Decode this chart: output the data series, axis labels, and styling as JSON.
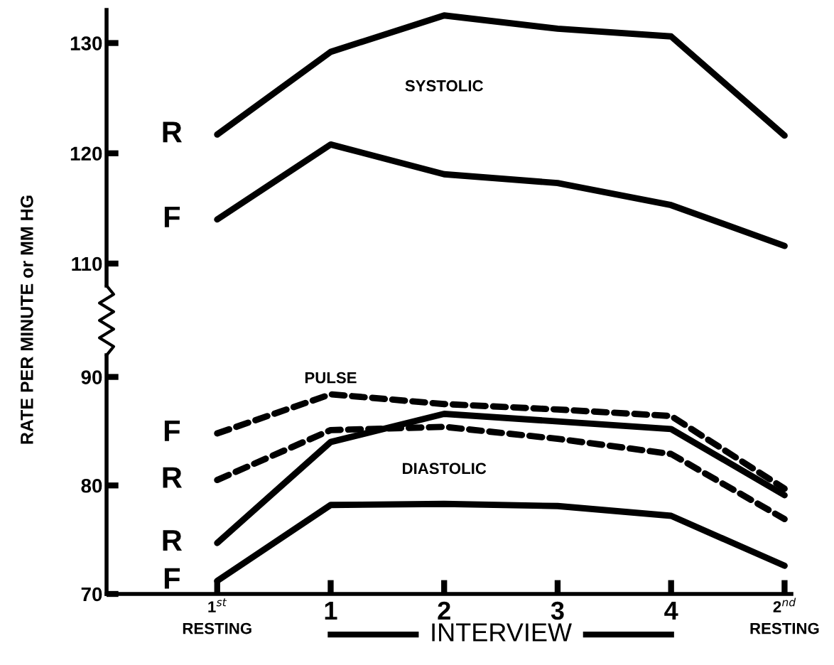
{
  "chart_data": [
    {
      "type": "line",
      "categories": [
        null,
        null,
        null,
        null,
        null,
        null
      ],
      "ylim": [
        108,
        133
      ],
      "yticks": [
        110,
        120,
        130
      ],
      "tick_labels": "y",
      "grid": false,
      "legend": false,
      "series": [
        {
          "name": "R",
          "color": "#000000",
          "line_style": "solid",
          "values": [
            121.7,
            129.2,
            132.5,
            131.3,
            130.6,
            121.6
          ]
        },
        {
          "name": "F",
          "color": "#000000",
          "line_style": "solid",
          "values": [
            114.0,
            120.8,
            118.1,
            117.3,
            115.3,
            111.6
          ]
        }
      ],
      "annotations": [
        "SYSTOLIC"
      ]
    },
    {
      "type": "line",
      "categories": [
        "1$^{st}$\nRESTING",
        "1",
        "2",
        "3",
        "4",
        "2$^{nd}$\nRESTING"
      ],
      "ylim": [
        70,
        92
      ],
      "yticks": [
        70,
        80,
        90
      ],
      "ylabel": "RATE PER MINUTE or MM HG",
      "grid": false,
      "legend": false,
      "series": [
        {
          "name": "F",
          "color": "#000000",
          "line_style": "dashed",
          "values": [
            84.8,
            88.4,
            87.5,
            87.0,
            86.4,
            79.7
          ]
        },
        {
          "name": "R",
          "color": "#000000",
          "line_style": "dashed",
          "values": [
            80.5,
            85.1,
            85.4,
            84.3,
            82.9,
            76.9
          ]
        },
        {
          "name": "R",
          "color": "#000000",
          "line_style": "solid",
          "values": [
            74.7,
            84.0,
            86.6,
            85.9,
            85.2,
            79.1
          ]
        },
        {
          "name": "F",
          "color": "#000000",
          "line_style": "solid",
          "values": [
            71.2,
            78.2,
            78.3,
            78.1,
            77.2,
            72.6
          ]
        }
      ],
      "annotations": [
        "PULSE",
        "DIASTOLIC",
        "INTERVIEW"
      ]
    }
  ]
}
